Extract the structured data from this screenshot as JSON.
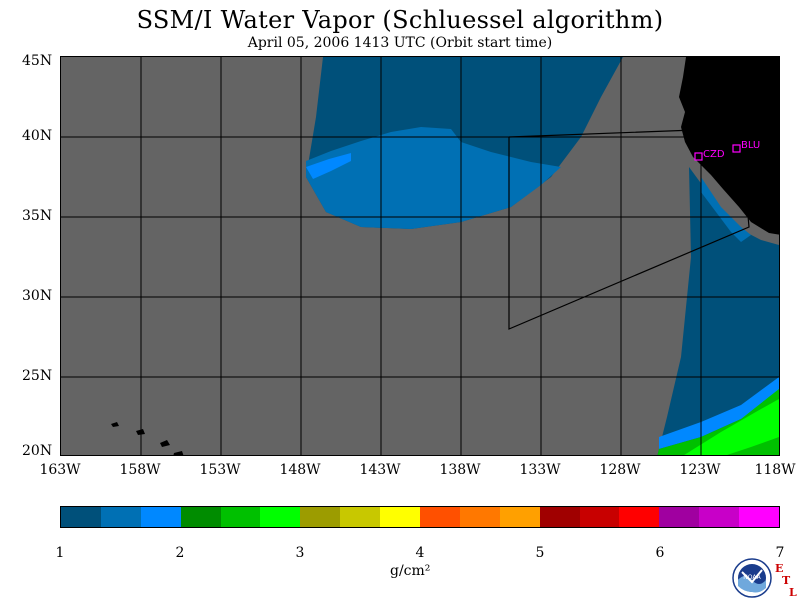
{
  "header": {
    "title": "SSM/I Water Vapor (Schluessel algorithm)",
    "subtitle": "April 05, 2006  1413 UTC  (Orbit start time)"
  },
  "map": {
    "latitude_labels": [
      "45N",
      "40N",
      "35N",
      "30N",
      "25N",
      "20N"
    ],
    "longitude_labels": [
      "163W",
      "158W",
      "153W",
      "148W",
      "143W",
      "138W",
      "133W",
      "128W",
      "123W",
      "118W"
    ],
    "extent": {
      "lon_west": -163,
      "lon_east": -118,
      "lat_south": 20,
      "lat_north": 45
    },
    "stations": [
      {
        "code": "CZD",
        "lat": 38.6,
        "lon": -123.2
      },
      {
        "code": "BLU",
        "lat": 39.3,
        "lon": -120.8
      }
    ],
    "colors": {
      "no_data": "#646464",
      "land": "#000000",
      "grid": "#000000",
      "station": "#ff00ff"
    }
  },
  "colorbar": {
    "min": 1,
    "max": 7,
    "tick_labels": [
      "1",
      "2",
      "3",
      "4",
      "5",
      "6",
      "7"
    ],
    "units_label": "g/cm²",
    "colors": [
      "#00507a",
      "#0070b4",
      "#0088ff",
      "#008c00",
      "#00c000",
      "#00ff00",
      "#9c9c00",
      "#c8c800",
      "#ffff00",
      "#ff5000",
      "#ff7800",
      "#ffa000",
      "#a00000",
      "#c80000",
      "#ff0000",
      "#a000a0",
      "#c800c8",
      "#ff00ff"
    ]
  },
  "logos": {
    "noaa": "NOAA",
    "etl": [
      "E",
      "T",
      "L"
    ]
  }
}
